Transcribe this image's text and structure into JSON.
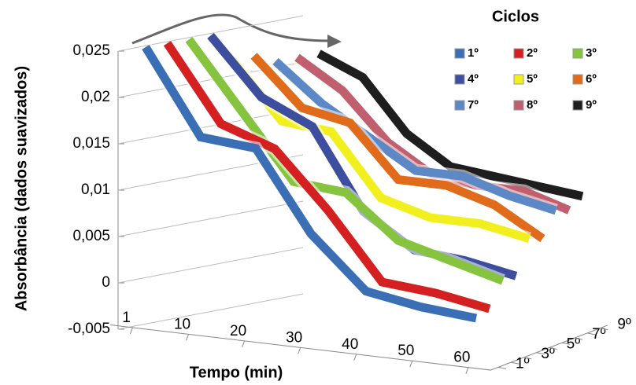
{
  "chart_data": {
    "type": "line3d",
    "y_label": "Absorbância (dados suavizados)",
    "x_label": "Tempo (min)",
    "legend_title": "Ciclos",
    "categories": [
      "1",
      "10",
      "20",
      "30",
      "40",
      "50",
      "60"
    ],
    "series": [
      {
        "name": "1º",
        "color": "#3a6fb5",
        "values": [
          0.025,
          0.016,
          0.0155,
          0.007,
          0.0015,
          0.0005,
          0.0
        ]
      },
      {
        "name": "2º",
        "color": "#d42020",
        "values": [
          0.025,
          0.017,
          0.015,
          0.009,
          0.002,
          0.0015,
          0.0005
        ]
      },
      {
        "name": "3º",
        "color": "#86c440",
        "values": [
          0.025,
          0.018,
          0.011,
          0.0105,
          0.006,
          0.0045,
          0.003
        ]
      },
      {
        "name": "4º",
        "color": "#3d4e9e",
        "values": [
          0.025,
          0.019,
          0.0165,
          0.008,
          0.0045,
          0.004,
          0.003
        ]
      },
      {
        "name": "5º",
        "color": "#f2ef1e",
        "values": [
          0.022,
          0.016,
          0.0155,
          0.009,
          0.0075,
          0.0075,
          0.0065
        ]
      },
      {
        "name": "6º",
        "color": "#e06b1a",
        "values": [
          0.022,
          0.017,
          0.016,
          0.0105,
          0.0105,
          0.009,
          0.006
        ]
      },
      {
        "name": "7º",
        "color": "#5d88c6",
        "values": [
          0.021,
          0.017,
          0.014,
          0.011,
          0.011,
          0.0095,
          0.0085
        ]
      },
      {
        "name": "8º",
        "color": "#c0606e",
        "values": [
          0.021,
          0.018,
          0.013,
          0.01,
          0.0095,
          0.0095,
          0.008
        ]
      },
      {
        "name": "9º",
        "color": "#1e1e1e",
        "values": [
          0.021,
          0.019,
          0.0135,
          0.0105,
          0.01,
          0.0095,
          0.009
        ]
      }
    ],
    "ylim": [
      -0.005,
      0.025
    ],
    "yticks": [
      {
        "value": -0.005,
        "label": "-0,005"
      },
      0,
      {
        "value": 0.005,
        "label": "0,005"
      },
      {
        "value": 0.01,
        "label": "0,01"
      },
      {
        "value": 0.015,
        "label": "0,015"
      },
      {
        "value": 0.02,
        "label": "0,02"
      },
      {
        "value": 0.025,
        "label": "0,025"
      }
    ],
    "grid": true
  }
}
